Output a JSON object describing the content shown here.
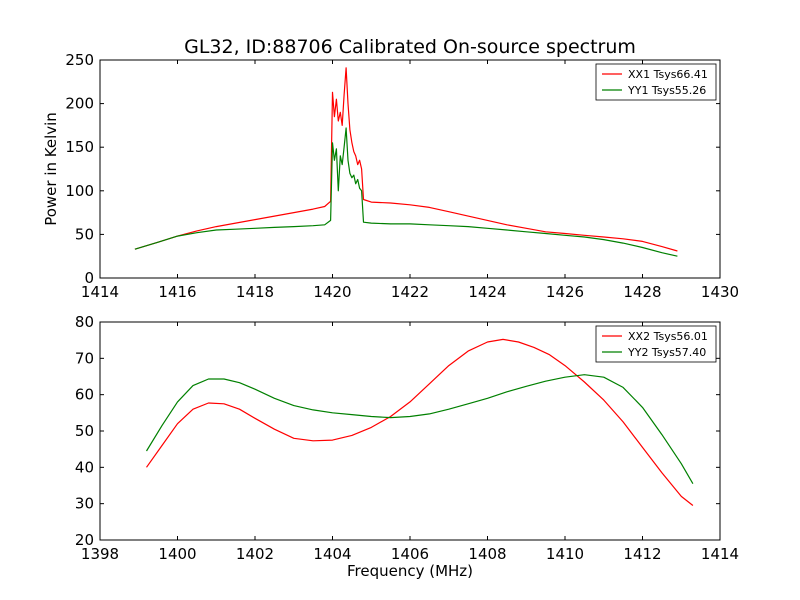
{
  "title": "GL32, ID:88706 Calibrated On-source spectrum",
  "chart_data": [
    {
      "type": "line",
      "title": "GL32, ID:88706 Calibrated On-source spectrum",
      "xlabel": "",
      "ylabel": "Power in Kelvin",
      "xlim": [
        1414,
        1430
      ],
      "ylim": [
        0,
        250
      ],
      "xticks": [
        1414,
        1416,
        1418,
        1420,
        1422,
        1424,
        1426,
        1428,
        1430
      ],
      "yticks": [
        0,
        50,
        100,
        150,
        200,
        250
      ],
      "grid": false,
      "legend_position": "top-right",
      "series": [
        {
          "name": "XX1 Tsys66.41",
          "color": "#ff0000",
          "x": [
            1414.9,
            1415.5,
            1416.0,
            1416.5,
            1417.0,
            1417.5,
            1418.0,
            1418.5,
            1419.0,
            1419.5,
            1419.8,
            1419.95,
            1420.0,
            1420.05,
            1420.1,
            1420.15,
            1420.2,
            1420.25,
            1420.3,
            1420.35,
            1420.4,
            1420.45,
            1420.5,
            1420.55,
            1420.6,
            1420.65,
            1420.7,
            1420.75,
            1420.8,
            1421.0,
            1421.5,
            1422.0,
            1422.5,
            1423.0,
            1423.5,
            1424.0,
            1424.5,
            1425.0,
            1425.5,
            1426.0,
            1426.5,
            1427.0,
            1427.5,
            1428.0,
            1428.5,
            1428.9
          ],
          "values": [
            33,
            41,
            48,
            54,
            59,
            63,
            67,
            71,
            75,
            79,
            82,
            88,
            213,
            185,
            205,
            180,
            190,
            175,
            210,
            241,
            200,
            170,
            155,
            145,
            140,
            130,
            135,
            125,
            90,
            87,
            86,
            84,
            81,
            76,
            71,
            66,
            61,
            57,
            53,
            51,
            49,
            47,
            45,
            42,
            36,
            31
          ]
        },
        {
          "name": "YY1 Tsys55.26",
          "color": "#008000",
          "x": [
            1414.9,
            1415.5,
            1416.0,
            1416.5,
            1417.0,
            1417.5,
            1418.0,
            1418.5,
            1419.0,
            1419.5,
            1419.8,
            1419.95,
            1420.0,
            1420.05,
            1420.1,
            1420.15,
            1420.2,
            1420.25,
            1420.3,
            1420.35,
            1420.4,
            1420.45,
            1420.5,
            1420.55,
            1420.6,
            1420.65,
            1420.7,
            1420.75,
            1420.8,
            1421.0,
            1421.5,
            1422.0,
            1422.5,
            1423.0,
            1423.5,
            1424.0,
            1424.5,
            1425.0,
            1425.5,
            1426.0,
            1426.5,
            1427.0,
            1427.5,
            1428.0,
            1428.5,
            1428.9
          ],
          "values": [
            33,
            41,
            48,
            52,
            55,
            56,
            57,
            58,
            59,
            60,
            61,
            66,
            155,
            135,
            148,
            100,
            140,
            130,
            150,
            172,
            135,
            120,
            115,
            118,
            108,
            113,
            103,
            100,
            64,
            63,
            62,
            62,
            61,
            60,
            59,
            57,
            55,
            53,
            51,
            49,
            47,
            44,
            40,
            35,
            29,
            25
          ]
        }
      ]
    },
    {
      "type": "line",
      "title": "",
      "xlabel": "Frequency (MHz)",
      "ylabel": "",
      "xlim": [
        1398,
        1414
      ],
      "ylim": [
        20,
        80
      ],
      "xticks": [
        1398,
        1400,
        1402,
        1404,
        1406,
        1408,
        1410,
        1412,
        1414
      ],
      "yticks": [
        20,
        30,
        40,
        50,
        60,
        70,
        80
      ],
      "grid": false,
      "legend_position": "top-right",
      "series": [
        {
          "name": "XX2 Tsys56.01",
          "color": "#ff0000",
          "x": [
            1399.2,
            1399.6,
            1400.0,
            1400.4,
            1400.8,
            1401.2,
            1401.6,
            1402.0,
            1402.5,
            1403.0,
            1403.5,
            1404.0,
            1404.5,
            1405.0,
            1405.5,
            1406.0,
            1406.5,
            1407.0,
            1407.5,
            1408.0,
            1408.4,
            1408.8,
            1409.2,
            1409.6,
            1410.0,
            1410.5,
            1411.0,
            1411.5,
            1412.0,
            1412.5,
            1413.0,
            1413.3
          ],
          "values": [
            40,
            46,
            52,
            56,
            57.7,
            57.5,
            56,
            53.5,
            50.5,
            48,
            47.3,
            47.5,
            48.8,
            51,
            54,
            58,
            63,
            68,
            72,
            74.5,
            75.2,
            74.5,
            73,
            71,
            68,
            63.5,
            58.5,
            52.5,
            45.5,
            38.5,
            32,
            29.5
          ]
        },
        {
          "name": "YY2 Tsys57.40",
          "color": "#008000",
          "x": [
            1399.2,
            1399.6,
            1400.0,
            1400.4,
            1400.8,
            1401.2,
            1401.6,
            1402.0,
            1402.5,
            1403.0,
            1403.5,
            1404.0,
            1404.5,
            1405.0,
            1405.5,
            1406.0,
            1406.5,
            1407.0,
            1407.5,
            1408.0,
            1408.5,
            1409.0,
            1409.5,
            1410.0,
            1410.5,
            1411.0,
            1411.5,
            1412.0,
            1412.5,
            1413.0,
            1413.3
          ],
          "values": [
            44.5,
            51.5,
            58,
            62.5,
            64.3,
            64.3,
            63.3,
            61.5,
            59,
            57,
            55.8,
            55,
            54.5,
            54,
            53.7,
            54,
            54.7,
            56,
            57.5,
            59,
            60.8,
            62.3,
            63.7,
            64.8,
            65.5,
            64.8,
            62,
            56.5,
            49,
            41,
            35.5
          ]
        }
      ]
    }
  ]
}
